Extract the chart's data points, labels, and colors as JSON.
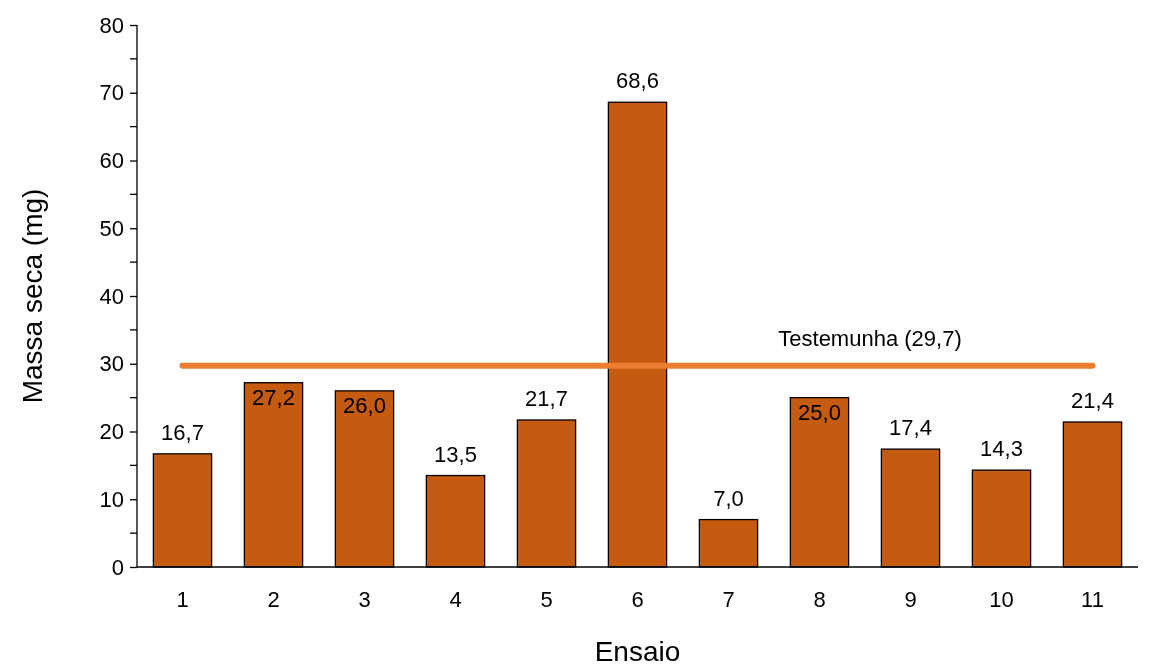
{
  "chart_data": {
    "type": "bar",
    "xlabel": "Ensaio",
    "ylabel": "Massa seca (mg)",
    "categories": [
      "1",
      "2",
      "3",
      "4",
      "5",
      "6",
      "7",
      "8",
      "9",
      "10",
      "11"
    ],
    "values": [
      16.7,
      27.2,
      26.0,
      13.5,
      21.7,
      68.6,
      7.0,
      25.0,
      17.4,
      14.3,
      21.4
    ],
    "value_labels": [
      "16,7",
      "27,2",
      "26,0",
      "13,5",
      "21,7",
      "68,6",
      "7,0",
      "25,0",
      "17,4",
      "14,3",
      "21,4"
    ],
    "color": "#c55a11",
    "ylim": [
      0,
      80
    ],
    "yticks": [
      0,
      10,
      20,
      30,
      40,
      50,
      60,
      70,
      80
    ],
    "ref_lines": [
      {
        "axis": "y",
        "value": 29.7,
        "label": "Testemunha (29,7)",
        "color": "#ed7d31"
      }
    ],
    "grid": false
  }
}
